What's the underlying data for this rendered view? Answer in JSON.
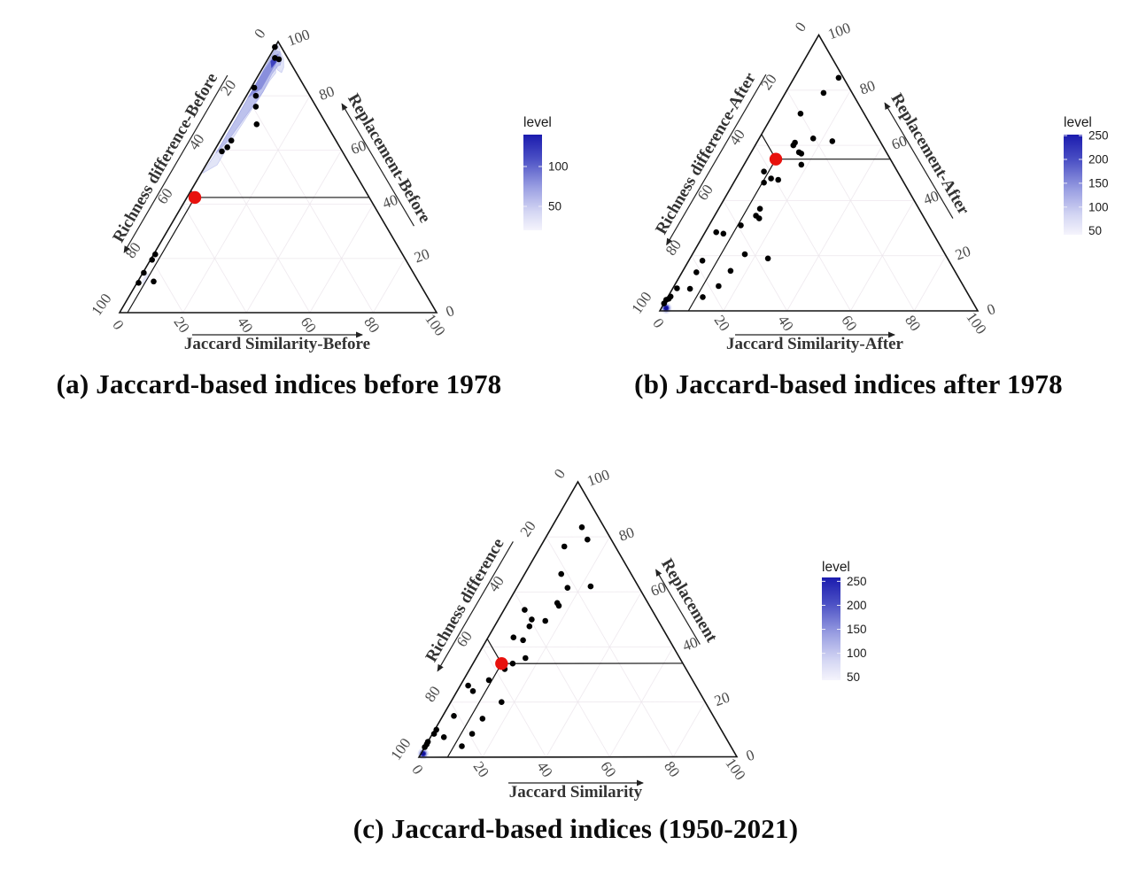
{
  "figure": {
    "background": "#ffffff"
  },
  "chart_data": [
    {
      "id": "a",
      "type": "scatter",
      "variant": "ternary-with-density",
      "caption": "(a) Jaccard-based indices before 1978",
      "axis_left_label": "Richness difference-Before",
      "axis_right_label": "Replacement-Before",
      "axis_bottom_label": "Jaccard Similarity-Before",
      "tick_values": [
        0,
        20,
        40,
        60,
        80,
        100
      ],
      "point_color": "#000000",
      "centroid_color": "#e8110d",
      "centroid_rpj": [
        55,
        42.5,
        2.5
      ],
      "points_rpj": [
        [
          2,
          98,
          0
        ],
        [
          4,
          94,
          2
        ],
        [
          3,
          93.5,
          3.5
        ],
        [
          16,
          83,
          1
        ],
        [
          17,
          80,
          3
        ],
        [
          19,
          76,
          5
        ],
        [
          22,
          69.5,
          8.5
        ],
        [
          33,
          63.5,
          3.5
        ],
        [
          35.5,
          61,
          3.5
        ],
        [
          38,
          59.5,
          2.5
        ],
        [
          78,
          21.5,
          0.5
        ],
        [
          80,
          19.5,
          0.5
        ],
        [
          85,
          14.7,
          0.3
        ],
        [
          88.5,
          11,
          0.5
        ],
        [
          83.5,
          11.5,
          5
        ]
      ],
      "density_levels": [
        {
          "color": "#ccd0f2",
          "opacity": 0.55,
          "stroke": "#9aa2e6",
          "poly": [
            [
              48,
              51.5,
              0.5
            ],
            [
              38,
              61,
              1
            ],
            [
              26,
              73,
              1
            ],
            [
              14,
              85.2,
              0.8
            ],
            [
              6,
              93.4,
              0.6
            ],
            [
              2,
              97.6,
              0.4
            ],
            [
              0.6,
              99.2,
              0.2
            ],
            [
              1.2,
              96.2,
              2.6
            ],
            [
              1.6,
              93.4,
              5
            ],
            [
              3,
              90.5,
              6.5
            ],
            [
              4.6,
              88.6,
              6.8
            ],
            [
              5.4,
              89.6,
              5
            ],
            [
              5,
              91.6,
              3.4
            ],
            [
              6.5,
              88.5,
              5
            ],
            [
              10,
              85.5,
              4.5
            ],
            [
              16,
              79.5,
              4.5
            ],
            [
              24,
              72,
              4
            ],
            [
              33,
              63.5,
              3.5
            ],
            [
              42,
              54.5,
              3.5
            ]
          ]
        },
        {
          "color": "#a6abe8",
          "opacity": 0.6,
          "stroke": "#8a90dd",
          "poly": [
            [
              40,
              59,
              1
            ],
            [
              28,
              71,
              1
            ],
            [
              16,
              83.2,
              0.8
            ],
            [
              7,
              92.4,
              0.6
            ],
            [
              2.5,
              96.9,
              0.6
            ],
            [
              1.4,
              96.2,
              2.4
            ],
            [
              2.4,
              93.2,
              4.4
            ],
            [
              3.6,
              91.4,
              5
            ],
            [
              4.6,
              91,
              4.4
            ],
            [
              8,
              88,
              4
            ],
            [
              14,
              81.5,
              4.5
            ],
            [
              24,
              72.5,
              3.5
            ],
            [
              34,
              63.5,
              2.5
            ]
          ]
        },
        {
          "color": "#6d73d2",
          "opacity": 0.65,
          "stroke": "none",
          "poly": [
            [
              20,
              79.2,
              0.8
            ],
            [
              10,
              89.2,
              0.8
            ],
            [
              4,
              94.8,
              1.2
            ],
            [
              2,
              95.6,
              2.4
            ],
            [
              4,
              92.6,
              3.4
            ],
            [
              8,
              88.6,
              3.4
            ],
            [
              14,
              82.5,
              3.5
            ]
          ]
        },
        {
          "color": "#2a2eb8",
          "opacity": 0.8,
          "stroke": "none",
          "poly": [
            [
              6,
              92.8,
              1.2
            ],
            [
              3.4,
              94.6,
              2
            ],
            [
              4.4,
              92.4,
              3.2
            ],
            [
              7,
              90.2,
              2.8
            ]
          ]
        }
      ],
      "density_spots": [
        {
          "rpj": [
            85.5,
            12.5,
            2
          ],
          "rx": 7,
          "ry": 2.5,
          "rot": -60,
          "color": "#ccd0f2",
          "opacity": 0.5
        }
      ],
      "density_rings": [],
      "legend": {
        "title": "level",
        "tick_values": [
          100,
          50
        ],
        "domain": [
          20,
          140
        ],
        "color_low": "#f5f4fc",
        "color_high": "#1b1bae"
      }
    },
    {
      "id": "b",
      "type": "scatter",
      "variant": "ternary-with-density",
      "caption": "(b) Jaccard-based indices after 1978",
      "axis_left_label": "Richness difference-After",
      "axis_right_label": "Replacement-After",
      "axis_bottom_label": "Jaccard Similarity-After",
      "tick_values": [
        0,
        20,
        40,
        60,
        80,
        100
      ],
      "point_color": "#000000",
      "centroid_color": "#e8110d",
      "centroid_rpj": [
        36,
        55,
        9
      ],
      "points_rpj": [
        [
          1.5,
          84.5,
          14
        ],
        [
          9,
          79,
          12
        ],
        [
          20,
          71.5,
          8.5
        ],
        [
          20.5,
          62.5,
          17
        ],
        [
          15,
          61.5,
          23.5
        ],
        [
          27,
          61,
          12
        ],
        [
          28,
          60,
          12
        ],
        [
          27.5,
          57.5,
          15
        ],
        [
          27,
          57,
          16
        ],
        [
          29,
          53,
          18
        ],
        [
          42,
          50.5,
          7.5
        ],
        [
          41,
          48,
          11
        ],
        [
          44,
          46.5,
          9.5
        ],
        [
          39,
          47.5,
          13.5
        ],
        [
          50,
          37,
          13
        ],
        [
          52.5,
          34.5,
          13
        ],
        [
          52,
          33.5,
          14.5
        ],
        [
          59,
          31,
          10
        ],
        [
          68,
          28.5,
          3.5
        ],
        [
          66,
          28,
          6
        ],
        [
          63,
          20.5,
          16.5
        ],
        [
          56.5,
          19,
          24.5
        ],
        [
          77.5,
          18.2,
          4.3
        ],
        [
          81.5,
          14,
          4.5
        ],
        [
          70.5,
          14.5,
          15
        ],
        [
          86.5,
          8,
          5.5
        ],
        [
          77,
          9,
          14
        ],
        [
          90.5,
          8.2,
          1.3
        ],
        [
          94,
          5.2,
          0.8
        ],
        [
          95,
          4.4,
          0.6
        ],
        [
          84,
          5,
          11
        ],
        [
          96,
          4,
          0
        ],
        [
          97.3,
          2.7,
          0
        ]
      ],
      "density_levels": [],
      "density_spots": [],
      "density_rings": [
        {
          "rpj": [
            97.5,
            1,
            1.5
          ],
          "r": 6.2,
          "color": "#ccd0f2",
          "opacity": 0.55
        },
        {
          "rpj": [
            97.5,
            1,
            1.5
          ],
          "r": 4.6,
          "color": "#7a80d4",
          "opacity": 0.65
        },
        {
          "rpj": [
            97.5,
            1,
            1.5
          ],
          "r": 3.2,
          "color": "#2a2eb8",
          "opacity": 0.9
        },
        {
          "rpj": [
            97.5,
            1,
            1.5
          ],
          "r": 2.2,
          "color": "#10109a",
          "opacity": 1
        }
      ],
      "legend": {
        "title": "level",
        "tick_values": [
          250,
          200,
          150,
          100,
          50
        ],
        "domain": [
          42,
          252
        ],
        "color_low": "#f5f4fc",
        "color_high": "#1b1bae"
      }
    },
    {
      "id": "c",
      "type": "scatter",
      "variant": "ternary-with-density",
      "caption": "(c) Jaccard-based indices (1950-2021)",
      "axis_left_label": "Richness difference",
      "axis_right_label": "Replacement",
      "axis_bottom_label": "Jaccard Similarity",
      "tick_values": [
        0,
        20,
        40,
        60,
        80,
        100
      ],
      "point_color": "#000000",
      "centroid_color": "#e8110d",
      "centroid_rpj": [
        57,
        34,
        9
      ],
      "points_rpj": [
        [
          7,
          83.5,
          9.5
        ],
        [
          7.5,
          79,
          13.5
        ],
        [
          16,
          76.5,
          7.5
        ],
        [
          22,
          66.5,
          11.5
        ],
        [
          22.5,
          61.5,
          16
        ],
        [
          15,
          62,
          23
        ],
        [
          28.5,
          56,
          15.5
        ],
        [
          28.5,
          55,
          16.5
        ],
        [
          40,
          53.5,
          6.5
        ],
        [
          39.5,
          50,
          10.5
        ],
        [
          35.5,
          49.5,
          15
        ],
        [
          41.5,
          47.5,
          11
        ],
        [
          48.5,
          43.5,
          8
        ],
        [
          46,
          42.5,
          11.5
        ],
        [
          48.5,
          36,
          15.5
        ],
        [
          53.5,
          34,
          12.5
        ],
        [
          57,
          32,
          11
        ],
        [
          64,
          28,
          8
        ],
        [
          71.5,
          26,
          2.5
        ],
        [
          71,
          24,
          5
        ],
        [
          64,
          20,
          16
        ],
        [
          96.3,
          3.7,
          0
        ],
        [
          95.2,
          4.7,
          0.1
        ],
        [
          94.4,
          5.6,
          0
        ],
        [
          89.5,
          10,
          0.5
        ],
        [
          91,
          8.5,
          0.5
        ],
        [
          88.5,
          7.3,
          4.2
        ],
        [
          81.5,
          15,
          3.5
        ],
        [
          84.5,
          4,
          11.5
        ],
        [
          79,
          8.5,
          12.5
        ],
        [
          73,
          14,
          13
        ]
      ],
      "density_levels": [],
      "density_spots": [],
      "density_rings": [
        {
          "rpj": [
            98,
            1.3,
            0.7
          ],
          "r": 6.2,
          "color": "#ccd0f2",
          "opacity": 0.55
        },
        {
          "rpj": [
            98,
            1.3,
            0.7
          ],
          "r": 4.6,
          "color": "#7a80d4",
          "opacity": 0.65
        },
        {
          "rpj": [
            98,
            1.3,
            0.7
          ],
          "r": 3.2,
          "color": "#2a2eb8",
          "opacity": 0.9
        },
        {
          "rpj": [
            98,
            1.3,
            0.7
          ],
          "r": 2.2,
          "color": "#10109a",
          "opacity": 1
        }
      ],
      "legend": {
        "title": "level",
        "tick_values": [
          250,
          200,
          150,
          100,
          50
        ],
        "domain": [
          44,
          258
        ],
        "color_low": "#f5f4fc",
        "color_high": "#1b1bae"
      }
    }
  ]
}
